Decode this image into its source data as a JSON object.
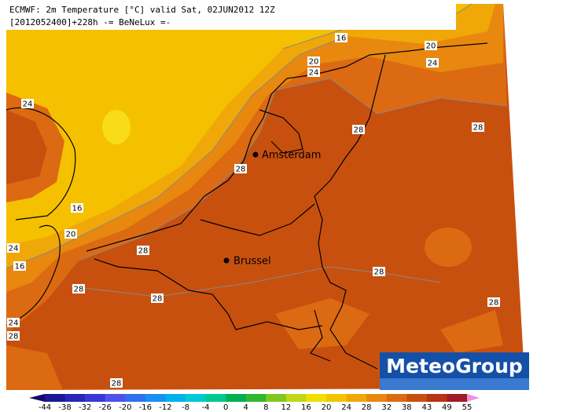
{
  "header": {
    "line1": "ECMWF: 2m Temperature [°C] valid Sat, 02JUN2012 12Z",
    "line2": "[2012052400]+228h -= BeNeLux =-"
  },
  "cities": [
    "Amsterdam",
    "Brussel"
  ],
  "contour_labels": [
    16,
    20,
    20,
    24,
    24,
    24,
    28,
    28,
    28,
    16,
    20,
    24,
    16,
    28,
    28,
    28,
    28,
    28,
    24,
    28,
    28
  ],
  "colorbar": {
    "labels": [
      -44,
      -38,
      -32,
      -26,
      -20,
      -16,
      -12,
      -8,
      -4,
      0,
      4,
      8,
      12,
      16,
      20,
      24,
      28,
      32,
      38,
      43,
      49,
      55
    ],
    "colors": [
      "#14086e",
      "#1c1896",
      "#2828b8",
      "#3838d8",
      "#5050ec",
      "#2f6ff0",
      "#1890f0",
      "#00b0ec",
      "#00c8d8",
      "#00c890",
      "#00b050",
      "#30b830",
      "#80c820",
      "#c0d818",
      "#f0e000",
      "#f5c400",
      "#f0a808",
      "#e8880f",
      "#dc6a12",
      "#c8500e",
      "#b83214",
      "#a01c28",
      "#c02878",
      "#e060b8",
      "#f090e0"
    ]
  },
  "logo": "MeteoGroup"
}
